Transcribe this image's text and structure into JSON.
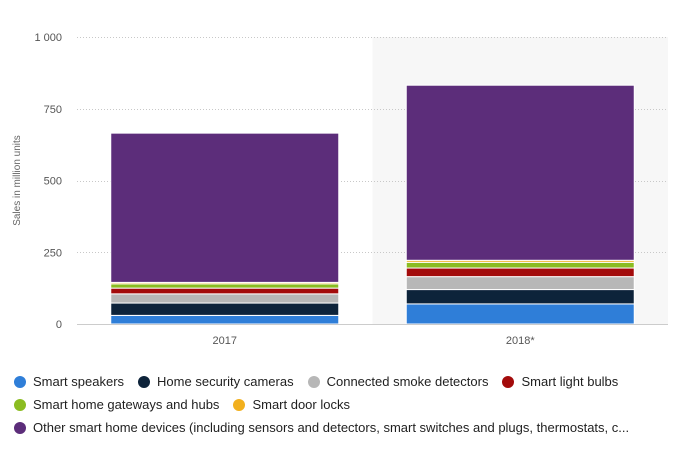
{
  "chart_data": {
    "type": "bar",
    "stacked": true,
    "title": "",
    "xlabel": "",
    "ylabel": "Sales in million units",
    "ylim": [
      0,
      1000
    ],
    "yticks": [
      0,
      250,
      500,
      750,
      1000
    ],
    "ytick_labels": [
      "0",
      "250",
      "500",
      "750",
      "1 000"
    ],
    "grid": true,
    "legend_position": "bottom",
    "highlighted_category": "2018*",
    "categories": [
      "2017",
      "2018*"
    ],
    "series": [
      {
        "name": "Smart speakers",
        "color": "#2f7ed8",
        "values": [
          30,
          70
        ]
      },
      {
        "name": "Home security cameras",
        "color": "#0d233a",
        "values": [
          43,
          50
        ]
      },
      {
        "name": "Connected smoke detectors",
        "color": "#b7b7b7",
        "values": [
          32,
          45
        ]
      },
      {
        "name": "Smart light bulbs",
        "color": "#a30b0b",
        "values": [
          20,
          30
        ]
      },
      {
        "name": "Smart home gateways and hubs",
        "color": "#8bbc21",
        "values": [
          15,
          20
        ]
      },
      {
        "name": "Smart door locks",
        "color": "#f2b01e",
        "values": [
          5,
          7
        ]
      },
      {
        "name": "Other smart home devices (including sensors and detectors, smart switches and plugs, thermostats, c...",
        "color": "#5c2d7a",
        "values": [
          520,
          610
        ]
      }
    ]
  }
}
